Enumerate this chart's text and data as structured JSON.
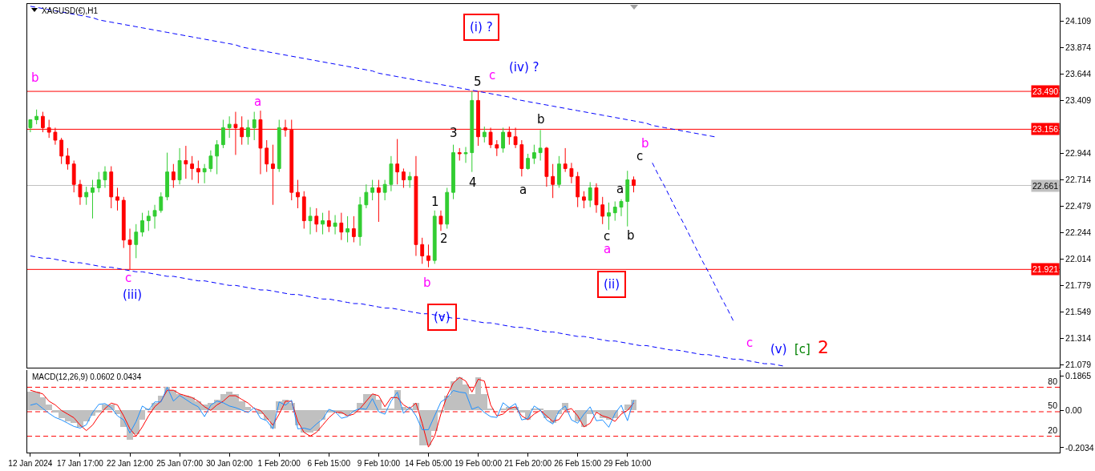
{
  "chart_data": [
    {
      "type": "candlestick",
      "title": "XAGUSD(€),H1",
      "categories": [
        null,
        null,
        null,
        null,
        null,
        null,
        null,
        null,
        null,
        null,
        null,
        null,
        null,
        null,
        null,
        null,
        null,
        null,
        null,
        null,
        null,
        null,
        null,
        null,
        null,
        null,
        null,
        null,
        null,
        null,
        null,
        null,
        null,
        null,
        null,
        null,
        null,
        null,
        null,
        null,
        null,
        null,
        null,
        null,
        null,
        null,
        null,
        null,
        null,
        null,
        null,
        null,
        null,
        null,
        null,
        null,
        null,
        null,
        null,
        null,
        null,
        null,
        null,
        null,
        null,
        null,
        null,
        null,
        null,
        null,
        null,
        null,
        null,
        null,
        null,
        null,
        null,
        null,
        null,
        null,
        null,
        null,
        null,
        null,
        null,
        null,
        null,
        null,
        null,
        null,
        null,
        null,
        null,
        null,
        null,
        null,
        null,
        null,
        null,
        null,
        null,
        null,
        null,
        null,
        null,
        null,
        null,
        null,
        null,
        null,
        null,
        null,
        null,
        null,
        null,
        null,
        null,
        null,
        null,
        null,
        null,
        null,
        null,
        null,
        null,
        null,
        null,
        null,
        null,
        null,
        null,
        null,
        null,
        null,
        null,
        null,
        null,
        null,
        null,
        null,
        null,
        null,
        null,
        null,
        null,
        null,
        null,
        null,
        null,
        null,
        null,
        null,
        null,
        null,
        null,
        null,
        null,
        null,
        null,
        null,
        null,
        null,
        null,
        null,
        null,
        null
      ],
      "ohlc": [
        [
          23.17,
          23.24,
          23.13,
          23.24
        ],
        [
          23.24,
          23.33,
          23.2,
          23.27
        ],
        [
          23.27,
          23.31,
          23.13,
          23.17
        ],
        [
          23.17,
          23.24,
          23.08,
          23.13
        ],
        [
          23.13,
          23.17,
          23.02,
          23.06
        ],
        [
          23.06,
          23.08,
          22.85,
          22.92
        ],
        [
          22.92,
          22.99,
          22.8,
          22.85
        ],
        [
          22.85,
          22.88,
          22.6,
          22.67
        ],
        [
          22.67,
          22.71,
          22.49,
          22.56
        ],
        [
          22.56,
          22.65,
          22.49,
          22.6
        ],
        [
          22.6,
          22.71,
          22.37,
          22.64
        ],
        [
          22.64,
          22.78,
          22.6,
          22.71
        ],
        [
          22.71,
          22.83,
          22.64,
          22.78
        ],
        [
          22.78,
          22.83,
          22.46,
          22.56
        ],
        [
          22.56,
          22.64,
          22.44,
          22.53
        ],
        [
          22.53,
          22.56,
          22.11,
          22.18
        ],
        [
          22.18,
          22.28,
          21.92,
          22.14
        ],
        [
          22.14,
          22.32,
          22.02,
          22.25
        ],
        [
          22.25,
          22.42,
          22.21,
          22.35
        ],
        [
          22.35,
          22.44,
          22.26,
          22.39
        ],
        [
          22.39,
          22.49,
          22.28,
          22.44
        ],
        [
          22.44,
          22.6,
          22.42,
          22.56
        ],
        [
          22.56,
          22.95,
          22.53,
          22.78
        ],
        [
          22.78,
          22.85,
          22.64,
          22.71
        ],
        [
          22.71,
          22.99,
          22.67,
          22.88
        ],
        [
          22.88,
          23.01,
          22.72,
          22.85
        ],
        [
          22.85,
          22.92,
          22.71,
          22.81
        ],
        [
          22.81,
          22.88,
          22.68,
          22.78
        ],
        [
          22.78,
          22.85,
          22.68,
          22.81
        ],
        [
          22.81,
          22.97,
          22.78,
          22.92
        ],
        [
          22.92,
          23.06,
          22.76,
          23.02
        ],
        [
          23.02,
          23.24,
          22.99,
          23.17
        ],
        [
          23.17,
          23.27,
          23.08,
          23.2
        ],
        [
          23.2,
          23.31,
          22.93,
          23.17
        ],
        [
          23.17,
          23.27,
          23.02,
          23.09
        ],
        [
          23.09,
          23.24,
          23.02,
          23.17
        ],
        [
          23.17,
          23.31,
          23.06,
          23.24
        ],
        [
          23.24,
          23.32,
          22.76,
          22.99
        ],
        [
          22.99,
          23.06,
          22.78,
          22.85
        ],
        [
          22.85,
          23.02,
          22.49,
          22.81
        ],
        [
          22.81,
          23.24,
          22.78,
          23.17
        ],
        [
          23.17,
          23.24,
          23.09,
          23.15
        ],
        [
          23.15,
          23.24,
          22.53,
          22.6
        ],
        [
          22.6,
          22.71,
          22.46,
          22.56
        ],
        [
          22.56,
          22.61,
          22.28,
          22.35
        ],
        [
          22.35,
          22.47,
          22.23,
          22.39
        ],
        [
          22.39,
          22.46,
          22.25,
          22.32
        ],
        [
          22.32,
          22.42,
          22.23,
          22.35
        ],
        [
          22.35,
          22.44,
          22.25,
          22.3
        ],
        [
          22.3,
          22.4,
          22.23,
          22.33
        ],
        [
          22.33,
          22.42,
          22.18,
          22.25
        ],
        [
          22.25,
          22.39,
          22.16,
          22.28
        ],
        [
          22.28,
          22.39,
          22.16,
          22.21
        ],
        [
          22.21,
          22.56,
          22.13,
          22.49
        ],
        [
          22.49,
          22.67,
          22.46,
          22.6
        ],
        [
          22.6,
          22.71,
          22.53,
          22.64
        ],
        [
          22.64,
          22.71,
          22.34,
          22.6
        ],
        [
          22.6,
          22.71,
          22.53,
          22.67
        ],
        [
          22.67,
          22.92,
          22.61,
          22.85
        ],
        [
          22.85,
          23.07,
          22.67,
          22.78
        ],
        [
          22.78,
          22.81,
          22.64,
          22.71
        ],
        [
          22.71,
          22.78,
          22.64,
          22.74
        ],
        [
          22.74,
          22.92,
          22.04,
          22.14
        ],
        [
          22.14,
          22.2,
          21.97,
          22.04
        ],
        [
          22.04,
          22.14,
          21.94,
          22.0
        ],
        [
          22.0,
          22.44,
          21.97,
          22.39
        ],
        [
          22.39,
          22.44,
          22.26,
          22.32
        ],
        [
          22.32,
          22.64,
          22.28,
          22.6
        ],
        [
          22.6,
          23.02,
          22.54,
          22.95
        ],
        [
          22.95,
          22.99,
          22.88,
          22.94
        ],
        [
          22.94,
          23.0,
          22.86,
          22.95
        ],
        [
          22.95,
          23.49,
          22.78,
          23.41
        ],
        [
          23.41,
          23.49,
          23.01,
          23.09
        ],
        [
          23.09,
          23.18,
          23.04,
          23.13
        ],
        [
          23.13,
          23.17,
          22.99,
          23.02
        ],
        [
          23.02,
          23.06,
          22.92,
          22.99
        ],
        [
          22.99,
          23.17,
          22.95,
          23.13
        ],
        [
          23.13,
          23.18,
          23.02,
          23.09
        ],
        [
          23.09,
          23.17,
          22.99,
          23.02
        ],
        [
          23.02,
          23.06,
          22.74,
          22.81
        ],
        [
          22.81,
          22.94,
          22.8,
          22.9
        ],
        [
          22.9,
          23.02,
          22.85,
          22.95
        ],
        [
          22.95,
          23.15,
          22.88,
          22.99
        ],
        [
          22.99,
          23.0,
          22.65,
          22.74
        ],
        [
          22.74,
          22.85,
          22.55,
          22.67
        ],
        [
          22.67,
          22.92,
          22.64,
          22.85
        ],
        [
          22.85,
          22.99,
          22.78,
          22.81
        ],
        [
          22.81,
          22.86,
          22.68,
          22.74
        ],
        [
          22.74,
          22.78,
          22.47,
          22.56
        ],
        [
          22.56,
          22.61,
          22.46,
          22.53
        ],
        [
          22.53,
          22.69,
          22.47,
          22.64
        ],
        [
          22.64,
          22.68,
          22.42,
          22.49
        ],
        [
          22.49,
          22.56,
          22.32,
          22.39
        ],
        [
          22.39,
          22.51,
          22.27,
          22.42
        ],
        [
          22.42,
          22.52,
          22.35,
          22.47
        ],
        [
          22.47,
          22.54,
          22.39,
          22.52
        ],
        [
          22.52,
          22.79,
          22.3,
          22.71
        ],
        [
          22.71,
          22.74,
          22.6,
          22.661
        ],
        null,
        null,
        null,
        null,
        null,
        null,
        null,
        null,
        null,
        null,
        null,
        null,
        null,
        null,
        null,
        null,
        null,
        null,
        null,
        null,
        null,
        null,
        null,
        null,
        null,
        null,
        null,
        null,
        null,
        null,
        null,
        null,
        null,
        null,
        null,
        null,
        null,
        null,
        null,
        null,
        null,
        null,
        null,
        null,
        null,
        null,
        null,
        null,
        null,
        null,
        null,
        null,
        null,
        null,
        null,
        null,
        null,
        null,
        null,
        null,
        null,
        null,
        null,
        null,
        null,
        null,
        null,
        null
      ],
      "colors": [
        "#32cd32",
        "#32cd32",
        "#ff0000",
        "#ff0000",
        "#ff0000",
        "#ff0000",
        "#ff0000",
        "#ff0000",
        "#ff0000",
        "#32cd32",
        "#32cd32",
        "#32cd32",
        "#32cd32",
        "#ff0000",
        "#ff0000",
        "#ff0000",
        "#ff0000",
        "#32cd32",
        "#32cd32",
        "#32cd32",
        "#32cd32",
        "#32cd32",
        "#32cd32",
        "#ff0000",
        "#32cd32",
        "#ff0000",
        "#ff0000",
        "#ff0000",
        "#32cd32",
        "#32cd32",
        "#32cd32",
        "#32cd32",
        "#32cd32",
        "#ff0000",
        "#ff0000",
        "#32cd32",
        "#32cd32",
        "#ff0000",
        "#ff0000",
        "#ff0000",
        "#32cd32",
        "#ff0000",
        "#ff0000",
        "#ff0000",
        "#ff0000",
        "#32cd32",
        "#ff0000",
        "#32cd32",
        "#ff0000",
        "#32cd32",
        "#ff0000",
        "#32cd32",
        "#ff0000",
        "#32cd32",
        "#32cd32",
        "#32cd32",
        "#ff0000",
        "#32cd32",
        "#32cd32",
        "#ff0000",
        "#ff0000",
        "#32cd32",
        "#ff0000",
        "#ff0000",
        "#ff0000",
        "#32cd32",
        "#ff0000",
        "#32cd32",
        "#32cd32",
        "#ff0000",
        "#32cd32",
        "#32cd32",
        "#ff0000",
        "#32cd32",
        "#ff0000",
        "#ff0000",
        "#32cd32",
        "#ff0000",
        "#ff0000",
        "#ff0000",
        "#32cd32",
        "#32cd32",
        "#32cd32",
        "#ff0000",
        "#ff0000",
        "#32cd32",
        "#ff0000",
        "#ff0000",
        "#ff0000",
        "#ff0000",
        "#32cd32",
        "#ff0000",
        "#ff0000",
        "#32cd32",
        "#32cd32",
        "#32cd32",
        "#32cd32",
        "#ff0000",
        null,
        null,
        null,
        null,
        null,
        null,
        null,
        null,
        null,
        null,
        null,
        null,
        null,
        null,
        null,
        null,
        null,
        null,
        null,
        null,
        null,
        null,
        null,
        null,
        null,
        null,
        null,
        null,
        null,
        null,
        null,
        null,
        null,
        null,
        null,
        null,
        null,
        null,
        null,
        null,
        null,
        null,
        null,
        null,
        null,
        null,
        null,
        null,
        null,
        null,
        null,
        null,
        null,
        null,
        null,
        null,
        null,
        null,
        null,
        null,
        null,
        null,
        null,
        null,
        null,
        null,
        null,
        null
      ],
      "series": [
        {
          "type": "line",
          "color": "#0000ff",
          "line_style": "dashed",
          "values": [
            24.24,
            24.23,
            24.22,
            24.21,
            24.2,
            24.19,
            24.18,
            24.17,
            24.16,
            24.15,
            24.14,
            24.12,
            24.11,
            24.1,
            24.09,
            24.08,
            24.07,
            24.06,
            24.05,
            24.04,
            24.03,
            24.02,
            24.01,
            24.0,
            23.99,
            23.98,
            23.97,
            23.96,
            23.95,
            23.94,
            23.93,
            23.92,
            23.91,
            23.9,
            23.88,
            23.87,
            23.86,
            23.85,
            23.84,
            23.83,
            23.82,
            23.81,
            23.8,
            23.79,
            23.78,
            23.77,
            23.76,
            23.75,
            23.74,
            23.73,
            23.72,
            23.71,
            23.7,
            23.69,
            23.68,
            23.67,
            23.65,
            23.64,
            23.63,
            23.62,
            23.61,
            23.6,
            23.59,
            23.58,
            23.57,
            23.56,
            23.55,
            23.54,
            23.53,
            23.52,
            23.51,
            23.5,
            23.49,
            23.48,
            23.47,
            23.46,
            23.45,
            23.44,
            23.42,
            23.41,
            23.4,
            23.39,
            23.38,
            23.37,
            23.36,
            23.35,
            23.34,
            23.33,
            23.32,
            23.31,
            23.3,
            23.29,
            23.28,
            23.27,
            23.26,
            23.25,
            23.24,
            23.23,
            23.22,
            23.21,
            23.19,
            23.18,
            23.17,
            23.16,
            23.15,
            23.14,
            23.13,
            23.12,
            23.11,
            23.1,
            23.09,
            null,
            null,
            null,
            null,
            null,
            null,
            null,
            null,
            null,
            null,
            null,
            null,
            null,
            null,
            null,
            null,
            null,
            null,
            null,
            null,
            null,
            null,
            null,
            null,
            null,
            null,
            null,
            null,
            null,
            null,
            null,
            null,
            null,
            null,
            null,
            null,
            null,
            null,
            null,
            null,
            null,
            null,
            null,
            null,
            null,
            null,
            null,
            null,
            null,
            null,
            null,
            null,
            null,
            null,
            null
          ]
        },
        {
          "type": "line",
          "color": "#0000ff",
          "line_style": "dashed",
          "values": [
            22.04,
            22.03,
            22.02,
            22.02,
            22.01,
            22.0,
            21.99,
            21.98,
            21.98,
            21.97,
            21.96,
            21.95,
            21.94,
            21.94,
            21.93,
            21.92,
            21.91,
            21.9,
            21.9,
            21.89,
            21.88,
            21.87,
            21.86,
            21.86,
            21.85,
            21.84,
            21.83,
            21.82,
            21.82,
            21.81,
            21.8,
            21.79,
            21.78,
            21.78,
            21.77,
            21.76,
            21.75,
            21.74,
            21.74,
            21.73,
            21.72,
            21.71,
            21.7,
            21.7,
            21.69,
            21.68,
            21.67,
            21.66,
            21.66,
            21.65,
            21.64,
            21.63,
            21.62,
            21.62,
            21.61,
            21.6,
            21.59,
            21.58,
            21.58,
            21.57,
            21.56,
            21.55,
            21.54,
            21.53,
            21.53,
            21.52,
            21.51,
            21.5,
            21.49,
            21.49,
            21.48,
            21.47,
            21.46,
            21.45,
            21.45,
            21.44,
            21.43,
            21.42,
            21.41,
            21.41,
            21.4,
            21.39,
            21.38,
            21.37,
            21.37,
            21.36,
            21.35,
            21.34,
            21.33,
            21.33,
            21.32,
            21.31,
            21.3,
            21.29,
            21.29,
            21.28,
            21.27,
            21.26,
            21.25,
            21.25,
            21.24,
            21.23,
            21.22,
            21.21,
            21.21,
            21.2,
            21.19,
            21.18,
            21.17,
            21.17,
            21.16,
            21.15,
            21.14,
            21.13,
            21.13,
            21.12,
            21.11,
            21.1,
            21.09,
            21.09,
            21.08,
            21.07,
            null,
            null,
            null,
            null,
            null,
            null,
            null,
            null,
            null,
            null,
            null,
            null,
            null,
            null,
            null,
            null,
            null,
            null,
            null,
            null,
            null,
            null,
            null,
            null,
            null,
            null,
            null,
            null,
            null,
            null,
            null,
            null,
            null,
            null,
            null,
            null,
            null,
            null,
            null,
            null,
            null,
            null,
            null,
            null
          ]
        },
        {
          "type": "line",
          "color": "#0000ff",
          "line_style": "dashed",
          "values": [
            null,
            null,
            null,
            null,
            null,
            null,
            null,
            null,
            null,
            null,
            null,
            null,
            null,
            null,
            null,
            null,
            null,
            null,
            null,
            null,
            null,
            null,
            null,
            null,
            null,
            null,
            null,
            null,
            null,
            null,
            null,
            null,
            null,
            null,
            null,
            null,
            null,
            null,
            null,
            null,
            null,
            null,
            null,
            null,
            null,
            null,
            null,
            null,
            null,
            null,
            null,
            null,
            null,
            null,
            null,
            null,
            null,
            null,
            null,
            null,
            null,
            null,
            null,
            null,
            null,
            null,
            null,
            null,
            null,
            null,
            null,
            null,
            null,
            null,
            null,
            null,
            null,
            null,
            null,
            null,
            null,
            null,
            null,
            null,
            null,
            null,
            null,
            null,
            null,
            null,
            null,
            null,
            null,
            null,
            null,
            null,
            null,
            null,
            null,
            null,
            22.86,
            22.75,
            22.65,
            22.54,
            22.43,
            22.33,
            22.22,
            22.11,
            22.0,
            21.9,
            21.79,
            21.68,
            21.58,
            21.47,
            null,
            null,
            null,
            null,
            null,
            null,
            null,
            null,
            null,
            null,
            null,
            null,
            null,
            null,
            null,
            null,
            null,
            null,
            null,
            null,
            null,
            null,
            null,
            null,
            null,
            null,
            null,
            null,
            null,
            null,
            null,
            null,
            null,
            null,
            null,
            null,
            null,
            null,
            null,
            null,
            null,
            null,
            null,
            null,
            null,
            null,
            null,
            null,
            null,
            null,
            null,
            null
          ]
        }
      ],
      "ylim": [
        21.055,
        24.26
      ],
      "yticks": [
        24.109,
        23.874,
        23.644,
        23.409,
        22.944,
        22.714,
        22.479,
        22.244,
        22.014,
        21.779,
        21.549,
        21.314,
        21.079
      ],
      "ref_lines": [
        {
          "axis": "y",
          "value": 23.49,
          "label": "23.490",
          "color": "#ff0000"
        },
        {
          "axis": "y",
          "value": 23.156,
          "label": "23.156",
          "color": "#ff0000"
        },
        {
          "axis": "y",
          "value": 21.921,
          "label": "21.921",
          "color": "#ff0000"
        },
        {
          "axis": "y",
          "value": 22.661,
          "label": "22.661",
          "color": "#c0c0c0"
        }
      ],
      "annotations": [
        "b",
        "a",
        "c",
        "(iii)",
        "(i) ?",
        "5",
        "c",
        "(iv) ?",
        "3",
        "b",
        "b",
        "c",
        "4",
        "a",
        "a",
        "1",
        "2",
        "c",
        "b",
        "a",
        "b",
        "(ii)",
        "(v)",
        "c",
        "(v)",
        "[c]",
        "2"
      ]
    },
    {
      "type": "bar",
      "title": "MACD(12,26,9) 0.0602 0.0434",
      "categories": [
        "12 Jan 2024",
        null,
        null,
        null,
        null,
        null,
        null,
        null,
        "17 Jan 17:00",
        null,
        null,
        null,
        null,
        null,
        null,
        null,
        "22 Jan 12:00",
        null,
        null,
        null,
        null,
        null,
        null,
        null,
        "25 Jan 07:00",
        null,
        null,
        null,
        null,
        null,
        null,
        null,
        "30 Jan 02:00",
        null,
        null,
        null,
        null,
        null,
        null,
        null,
        "1 Feb 20:00",
        null,
        null,
        null,
        null,
        null,
        null,
        null,
        "6 Feb 15:00",
        null,
        null,
        null,
        null,
        null,
        null,
        null,
        "9 Feb 10:00",
        null,
        null,
        null,
        null,
        null,
        null,
        null,
        "14 Feb 05:00",
        null,
        null,
        null,
        null,
        null,
        null,
        null,
        "19 Feb 00:00",
        null,
        null,
        null,
        null,
        null,
        null,
        null,
        "21 Feb 20:00",
        null,
        null,
        null,
        null,
        null,
        null,
        null,
        "26 Feb 15:00",
        null,
        null,
        null,
        null,
        null,
        null,
        null,
        "29 Feb 10:00",
        null,
        null,
        null,
        null,
        null,
        null,
        null,
        null,
        null,
        null,
        null,
        null,
        null,
        null,
        null,
        null,
        null,
        null,
        null,
        null,
        null,
        null,
        null,
        null,
        null,
        null,
        null,
        null,
        null,
        null,
        null,
        null,
        null,
        null,
        null,
        null,
        null,
        null,
        null,
        null,
        null,
        null,
        null,
        null,
        null,
        null,
        null,
        null,
        null,
        null,
        null,
        null,
        null,
        null,
        null,
        null,
        null,
        null,
        null,
        null,
        null,
        null,
        null,
        null,
        null,
        null,
        null,
        null,
        null
      ],
      "series": [
        {
          "type": "bar",
          "color": "#c0c0c0",
          "values": [
            0.1,
            0.1,
            0.07,
            0.03,
            -0.01,
            -0.04,
            -0.06,
            -0.07,
            -0.09,
            -0.06,
            -0.03,
            -0.01,
            0.03,
            0.03,
            -0.02,
            -0.09,
            -0.16,
            -0.13,
            -0.05,
            0.01,
            0.04,
            0.08,
            0.13,
            0.11,
            0.09,
            0.08,
            0.07,
            0.05,
            0.03,
            0.04,
            0.06,
            0.09,
            0.1,
            0.09,
            0.05,
            0.02,
            0.0,
            -0.02,
            -0.05,
            -0.1,
            0.05,
            0.06,
            0.04,
            -0.08,
            -0.12,
            -0.12,
            -0.11,
            -0.05,
            -0.01,
            -0.01,
            -0.02,
            -0.03,
            -0.01,
            0.04,
            0.09,
            0.09,
            0.06,
            0.01,
            0.01,
            0.11,
            0.02,
            0.01,
            0.04,
            -0.19,
            -0.19,
            -0.11,
            -0.01,
            0.08,
            0.16,
            0.18,
            0.14,
            0.09,
            0.18,
            0.09,
            0.01,
            0.0,
            0.01,
            0.02,
            0.02,
            -0.01,
            -0.05,
            0.01,
            0.01,
            -0.04,
            -0.07,
            -0.02,
            0.04,
            0.0,
            -0.06,
            -0.09,
            -0.02,
            -0.01,
            -0.04,
            -0.05,
            -0.04,
            0.0,
            0.03,
            0.06,
            null,
            null,
            null,
            null,
            null,
            null,
            null,
            null,
            null,
            null,
            null,
            null,
            null,
            null,
            null,
            null,
            null,
            null,
            null,
            null,
            null,
            null,
            null,
            null,
            null,
            null,
            null,
            null,
            null,
            null,
            null,
            null,
            null,
            null,
            null,
            null,
            null,
            null,
            null,
            null,
            null,
            null,
            null,
            null,
            null,
            null,
            null,
            null,
            null,
            null,
            null,
            null,
            null,
            null,
            null,
            null,
            null,
            null,
            null,
            null,
            null,
            null,
            null,
            null,
            null,
            null,
            null,
            null
          ]
        },
        {
          "type": "line",
          "color": "#ff0000",
          "values": [
            0.11,
            0.1,
            0.09,
            0.05,
            0.03,
            0.0,
            -0.02,
            -0.04,
            -0.08,
            -0.11,
            -0.08,
            -0.03,
            0.01,
            0.04,
            0.03,
            -0.03,
            -0.1,
            -0.14,
            -0.09,
            -0.03,
            0.02,
            0.05,
            0.11,
            0.11,
            0.09,
            0.08,
            0.07,
            0.05,
            0.02,
            0.0,
            0.03,
            0.05,
            0.08,
            0.08,
            0.06,
            0.04,
            0.01,
            0.0,
            -0.04,
            -0.08,
            -0.02,
            0.05,
            0.05,
            -0.06,
            -0.12,
            -0.14,
            -0.12,
            -0.08,
            -0.04,
            -0.01,
            -0.01,
            -0.03,
            -0.02,
            0.01,
            0.05,
            0.09,
            0.08,
            0.02,
            0.07,
            0.07,
            0.03,
            0.01,
            0.04,
            -0.07,
            -0.2,
            -0.14,
            -0.02,
            0.08,
            0.15,
            0.18,
            0.16,
            0.1,
            0.17,
            0.16,
            0.03,
            -0.03,
            -0.02,
            0.01,
            0.02,
            -0.03,
            -0.05,
            -0.02,
            0.0,
            -0.03,
            -0.06,
            -0.05,
            0.0,
            0.01,
            -0.03,
            -0.09,
            -0.07,
            -0.01,
            -0.03,
            -0.04,
            -0.06,
            -0.02,
            0.0,
            0.04,
            null,
            null,
            null,
            null,
            null,
            null,
            null,
            null,
            null,
            null,
            null,
            null,
            null,
            null,
            null,
            null,
            null,
            null,
            null,
            null,
            null,
            null,
            null,
            null,
            null,
            null,
            null,
            null,
            null,
            null,
            null,
            null,
            null,
            null,
            null,
            null,
            null,
            null,
            null,
            null,
            null,
            null,
            null,
            null,
            null,
            null,
            null,
            null,
            null,
            null,
            null,
            null,
            null,
            null,
            null,
            null,
            null,
            null,
            null,
            null,
            null,
            null,
            null,
            null,
            null,
            null,
            null,
            null
          ]
        },
        {
          "type": "line",
          "color": "#1e90ff",
          "axis": "y2",
          "values": [
            58,
            60,
            54,
            48,
            43,
            40,
            36,
            32,
            30,
            34,
            49,
            59,
            60,
            55,
            45,
            40,
            24,
            38,
            57,
            52,
            62,
            62,
            80,
            63,
            70,
            65,
            60,
            56,
            44,
            58,
            63,
            61,
            57,
            55,
            52,
            49,
            55,
            42,
            39,
            29,
            62,
            58,
            64,
            29,
            30,
            28,
            35,
            41,
            53,
            50,
            42,
            44,
            51,
            54,
            53,
            66,
            50,
            47,
            63,
            74,
            48,
            56,
            45,
            28,
            28,
            45,
            62,
            67,
            76,
            74,
            73,
            53,
            56,
            49,
            44,
            43,
            61,
            55,
            60,
            40,
            42,
            57,
            52,
            40,
            35,
            51,
            57,
            40,
            36,
            47,
            56,
            39,
            40,
            31,
            48,
            58,
            39,
            64,
            null,
            null,
            null,
            null,
            null,
            null,
            null,
            null,
            null,
            null,
            null,
            null,
            null,
            null,
            null,
            null,
            null,
            null,
            null,
            null,
            null,
            null,
            null,
            null,
            null,
            null,
            null,
            null,
            null,
            null,
            null,
            null,
            null,
            null,
            null,
            null,
            null,
            null,
            null,
            null,
            null,
            null,
            null,
            null,
            null,
            null,
            null,
            null,
            null,
            null,
            null,
            null,
            null,
            null,
            null,
            null,
            null,
            null,
            null,
            null,
            null,
            null,
            null,
            null,
            null,
            null,
            null,
            null
          ]
        }
      ],
      "ylim": [
        -0.23,
        0.22
      ],
      "yticks": [
        0.1865,
        {
          "value": 0,
          "label": "0.00"
        },
        -0.2034
      ],
      "y2lim": [
        0,
        101
      ],
      "y2ticks": [
        80,
        50,
        20
      ],
      "ref_lines": [
        {
          "axis": "y2",
          "value": 80,
          "color": "#ff0000",
          "line_style": "dashed"
        },
        {
          "axis": "y2",
          "value": 50,
          "color": "#ff0000",
          "line_style": "dashed"
        },
        {
          "axis": "y2",
          "value": 20,
          "color": "#ff0000",
          "line_style": "dashed"
        }
      ]
    }
  ]
}
